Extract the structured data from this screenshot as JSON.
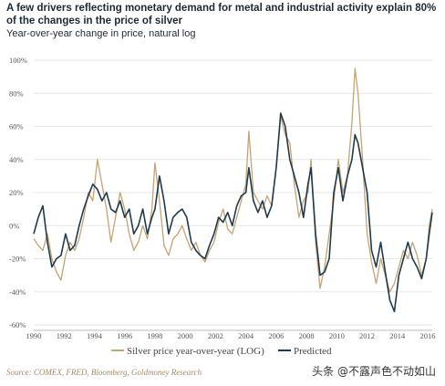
{
  "title": "A few drivers reflecting monetary demand for metal and industrial activity explain 80% of the changes in the price of silver",
  "subtitle": "Year-over-year change in price, natural log",
  "source": "Source: COMEX, FRED, Bloomberg, Goldmoney Research",
  "watermark": "头条 @不露声色不动如山",
  "colors": {
    "silver": "#c4a374",
    "predicted": "#1f3a4d",
    "grid": "#e6e6e6"
  },
  "chart_data": {
    "type": "line",
    "xlim": [
      1990,
      2016.3
    ],
    "ylim": [
      -60,
      100
    ],
    "x_ticks": [
      1990,
      1992,
      1994,
      1996,
      1998,
      2000,
      2002,
      2004,
      2006,
      2008,
      2010,
      2012,
      2014,
      2016
    ],
    "y_ticks": [
      -60,
      -40,
      -20,
      0,
      20,
      40,
      60,
      80,
      100
    ],
    "y_tick_labels": [
      "-60%",
      "-40%",
      "-20%",
      "0%",
      "20%",
      "40%",
      "60%",
      "80%",
      "100%"
    ],
    "grid": "horizontal",
    "legend_position": "bottom",
    "series": [
      {
        "name": "Silver price year-over-year (LOG)",
        "color": "#c4a374",
        "points": [
          [
            1990,
            -8
          ],
          [
            1990.3,
            -12
          ],
          [
            1990.6,
            -15
          ],
          [
            1990.9,
            -5
          ],
          [
            1991.2,
            -20
          ],
          [
            1991.5,
            -28
          ],
          [
            1991.8,
            -33
          ],
          [
            1992.1,
            -18
          ],
          [
            1992.4,
            -10
          ],
          [
            1992.7,
            -15
          ],
          [
            1993.0,
            -8
          ],
          [
            1993.3,
            5
          ],
          [
            1993.6,
            20
          ],
          [
            1993.9,
            15
          ],
          [
            1994.2,
            40
          ],
          [
            1994.5,
            25
          ],
          [
            1994.8,
            10
          ],
          [
            1995.1,
            -10
          ],
          [
            1995.4,
            5
          ],
          [
            1995.7,
            20
          ],
          [
            1996.0,
            10
          ],
          [
            1996.3,
            -5
          ],
          [
            1996.6,
            -15
          ],
          [
            1996.9,
            -10
          ],
          [
            1997.2,
            0
          ],
          [
            1997.5,
            -8
          ],
          [
            1997.8,
            10
          ],
          [
            1998.0,
            38
          ],
          [
            1998.3,
            15
          ],
          [
            1998.6,
            -12
          ],
          [
            1998.9,
            -18
          ],
          [
            1999.2,
            -8
          ],
          [
            1999.5,
            -5
          ],
          [
            1999.8,
            0
          ],
          [
            2000.1,
            -8
          ],
          [
            2000.4,
            -15
          ],
          [
            2000.7,
            -10
          ],
          [
            2001.0,
            -18
          ],
          [
            2001.3,
            -22
          ],
          [
            2001.6,
            -15
          ],
          [
            2001.9,
            -10
          ],
          [
            2002.2,
            2
          ],
          [
            2002.5,
            10
          ],
          [
            2002.8,
            -2
          ],
          [
            2003.1,
            -5
          ],
          [
            2003.4,
            5
          ],
          [
            2003.7,
            15
          ],
          [
            2004.0,
            25
          ],
          [
            2004.2,
            57
          ],
          [
            2004.5,
            20
          ],
          [
            2004.8,
            15
          ],
          [
            2005.1,
            10
          ],
          [
            2005.4,
            18
          ],
          [
            2005.7,
            12
          ],
          [
            2006.0,
            35
          ],
          [
            2006.3,
            66
          ],
          [
            2006.6,
            55
          ],
          [
            2006.9,
            50
          ],
          [
            2007.2,
            25
          ],
          [
            2007.5,
            5
          ],
          [
            2007.8,
            15
          ],
          [
            2008.1,
            20
          ],
          [
            2008.3,
            40
          ],
          [
            2008.6,
            -10
          ],
          [
            2008.9,
            -38
          ],
          [
            2009.2,
            -25
          ],
          [
            2009.5,
            -5
          ],
          [
            2009.8,
            15
          ],
          [
            2010.1,
            40
          ],
          [
            2010.4,
            20
          ],
          [
            2010.7,
            30
          ],
          [
            2011.0,
            62
          ],
          [
            2011.2,
            95
          ],
          [
            2011.4,
            80
          ],
          [
            2011.7,
            40
          ],
          [
            2012.0,
            -5
          ],
          [
            2012.3,
            -22
          ],
          [
            2012.6,
            -35
          ],
          [
            2012.9,
            -20
          ],
          [
            2013.2,
            -30
          ],
          [
            2013.5,
            -40
          ],
          [
            2013.8,
            -35
          ],
          [
            2014.1,
            -25
          ],
          [
            2014.4,
            -15
          ],
          [
            2014.7,
            -20
          ],
          [
            2015.0,
            -10
          ],
          [
            2015.3,
            -18
          ],
          [
            2015.6,
            -30
          ],
          [
            2015.9,
            -20
          ],
          [
            2016.1,
            0
          ],
          [
            2016.3,
            10
          ]
        ]
      },
      {
        "name": "Predicted",
        "color": "#1f3a4d",
        "points": [
          [
            1990,
            -5
          ],
          [
            1990.3,
            5
          ],
          [
            1990.6,
            12
          ],
          [
            1990.9,
            -10
          ],
          [
            1991.2,
            -25
          ],
          [
            1991.5,
            -20
          ],
          [
            1991.8,
            -18
          ],
          [
            1992.1,
            -5
          ],
          [
            1992.4,
            -15
          ],
          [
            1992.7,
            -12
          ],
          [
            1993.0,
            0
          ],
          [
            1993.3,
            10
          ],
          [
            1993.6,
            18
          ],
          [
            1993.9,
            25
          ],
          [
            1994.2,
            22
          ],
          [
            1994.5,
            15
          ],
          [
            1994.8,
            20
          ],
          [
            1995.1,
            10
          ],
          [
            1995.4,
            8
          ],
          [
            1995.7,
            15
          ],
          [
            1996.0,
            5
          ],
          [
            1996.3,
            10
          ],
          [
            1996.6,
            -5
          ],
          [
            1996.9,
            0
          ],
          [
            1997.2,
            10
          ],
          [
            1997.5,
            -5
          ],
          [
            1997.8,
            5
          ],
          [
            1998.0,
            10
          ],
          [
            1998.3,
            30
          ],
          [
            1998.6,
            15
          ],
          [
            1998.9,
            -5
          ],
          [
            1999.2,
            5
          ],
          [
            1999.5,
            8
          ],
          [
            1999.8,
            10
          ],
          [
            2000.1,
            5
          ],
          [
            2000.4,
            -10
          ],
          [
            2000.7,
            -15
          ],
          [
            2001.0,
            -18
          ],
          [
            2001.3,
            -20
          ],
          [
            2001.6,
            -12
          ],
          [
            2001.9,
            -5
          ],
          [
            2002.2,
            5
          ],
          [
            2002.5,
            2
          ],
          [
            2002.8,
            8
          ],
          [
            2003.1,
            0
          ],
          [
            2003.4,
            12
          ],
          [
            2003.7,
            18
          ],
          [
            2004.0,
            20
          ],
          [
            2004.2,
            35
          ],
          [
            2004.5,
            15
          ],
          [
            2004.8,
            8
          ],
          [
            2005.1,
            15
          ],
          [
            2005.4,
            5
          ],
          [
            2005.7,
            12
          ],
          [
            2006.0,
            35
          ],
          [
            2006.3,
            68
          ],
          [
            2006.6,
            60
          ],
          [
            2006.9,
            40
          ],
          [
            2007.2,
            30
          ],
          [
            2007.5,
            20
          ],
          [
            2007.8,
            5
          ],
          [
            2008.1,
            25
          ],
          [
            2008.3,
            35
          ],
          [
            2008.6,
            -5
          ],
          [
            2008.9,
            -30
          ],
          [
            2009.2,
            -28
          ],
          [
            2009.5,
            -20
          ],
          [
            2009.8,
            20
          ],
          [
            2010.1,
            35
          ],
          [
            2010.4,
            15
          ],
          [
            2010.7,
            30
          ],
          [
            2011.0,
            40
          ],
          [
            2011.2,
            55
          ],
          [
            2011.4,
            50
          ],
          [
            2011.7,
            35
          ],
          [
            2012.0,
            20
          ],
          [
            2012.3,
            -15
          ],
          [
            2012.6,
            -25
          ],
          [
            2012.9,
            -10
          ],
          [
            2013.2,
            -28
          ],
          [
            2013.5,
            -45
          ],
          [
            2013.8,
            -52
          ],
          [
            2014.1,
            -30
          ],
          [
            2014.4,
            -20
          ],
          [
            2014.7,
            -10
          ],
          [
            2015.0,
            -20
          ],
          [
            2015.3,
            -25
          ],
          [
            2015.6,
            -32
          ],
          [
            2015.9,
            -20
          ],
          [
            2016.1,
            -5
          ],
          [
            2016.3,
            8
          ]
        ]
      }
    ]
  }
}
